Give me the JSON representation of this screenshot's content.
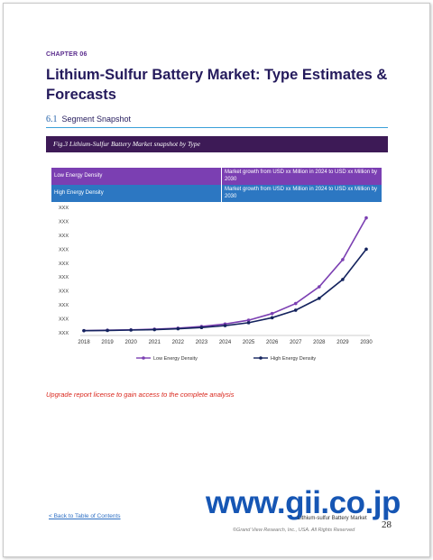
{
  "chapter": "CHAPTER 06",
  "title": "Lithium-Sulfur Battery Market: Type Estimates & Forecasts",
  "section": {
    "number": "6.1",
    "label": "Segment Snapshot"
  },
  "figure_caption": "Fig.3  Lithium-Sulfur Battery Market snapshot by Type",
  "segments": [
    {
      "name": "Low Energy Density",
      "description": "Market growth from USD xx Million in 2024 to USD xx Million by 2030"
    },
    {
      "name": "High Energy Density",
      "description": "Market growth from USD xx Million in 2024 to USD xx Million by 2030"
    }
  ],
  "chart_data": {
    "type": "line",
    "x": [
      "2018",
      "2019",
      "2020",
      "2021",
      "2022",
      "2023",
      "2024",
      "2025",
      "2026",
      "2027",
      "2028",
      "2029",
      "2030"
    ],
    "ytick_labels": [
      "XXX",
      "XXX",
      "XXX",
      "XXX",
      "XXX",
      "XXX",
      "XXX",
      "XXX",
      "XXX",
      "XXX"
    ],
    "series": [
      {
        "name": "Low Energy Density",
        "color": "#7b3fb2",
        "values": [
          1.0,
          1.2,
          1.4,
          1.7,
          2.2,
          3.0,
          4.2,
          6.0,
          9.2,
          14.0,
          22.0,
          35.0,
          55.0
        ]
      },
      {
        "name": "High Energy Density",
        "color": "#14235e",
        "values": [
          1.0,
          1.1,
          1.3,
          1.5,
          1.9,
          2.5,
          3.4,
          4.8,
          7.2,
          10.8,
          16.5,
          25.5,
          40.0
        ]
      }
    ],
    "ylim": [
      0,
      60
    ],
    "legend_position": "bottom",
    "grid": false
  },
  "upgrade_note": "Upgrade report license to gain access to the complete analysis",
  "watermark": "www.gii.co.jp",
  "footer": {
    "back_link": "< Back to Table of Contents",
    "report_title": "Lithium-sulfur Battery Market",
    "copyright": "©Grand View Research, Inc., USA. All Rights Reserved",
    "page_number": "28"
  }
}
